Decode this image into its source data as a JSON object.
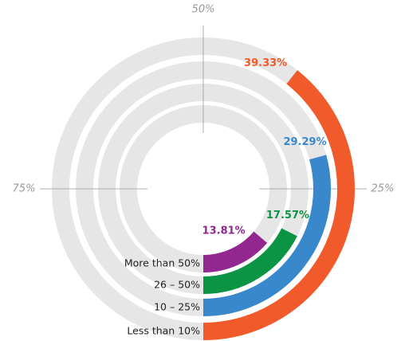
{
  "chart_data": {
    "type": "radial_bar",
    "categories": [
      "Less than 10%",
      "10 – 25%",
      "26 – 50%",
      "More than 50%"
    ],
    "values": [
      39.33,
      29.29,
      17.57,
      13.81
    ],
    "value_labels": [
      "39.33%",
      "29.29%",
      "17.57%",
      "13.81%"
    ],
    "colors": [
      "#f15a2b",
      "#3a88cc",
      "#0b9444",
      "#92278f"
    ],
    "ylim": [
      0,
      100
    ],
    "yticks": [
      {
        "value": 25,
        "label": "25%"
      },
      {
        "value": 50,
        "label": "50%"
      },
      {
        "value": 75,
        "label": "75%"
      }
    ]
  }
}
